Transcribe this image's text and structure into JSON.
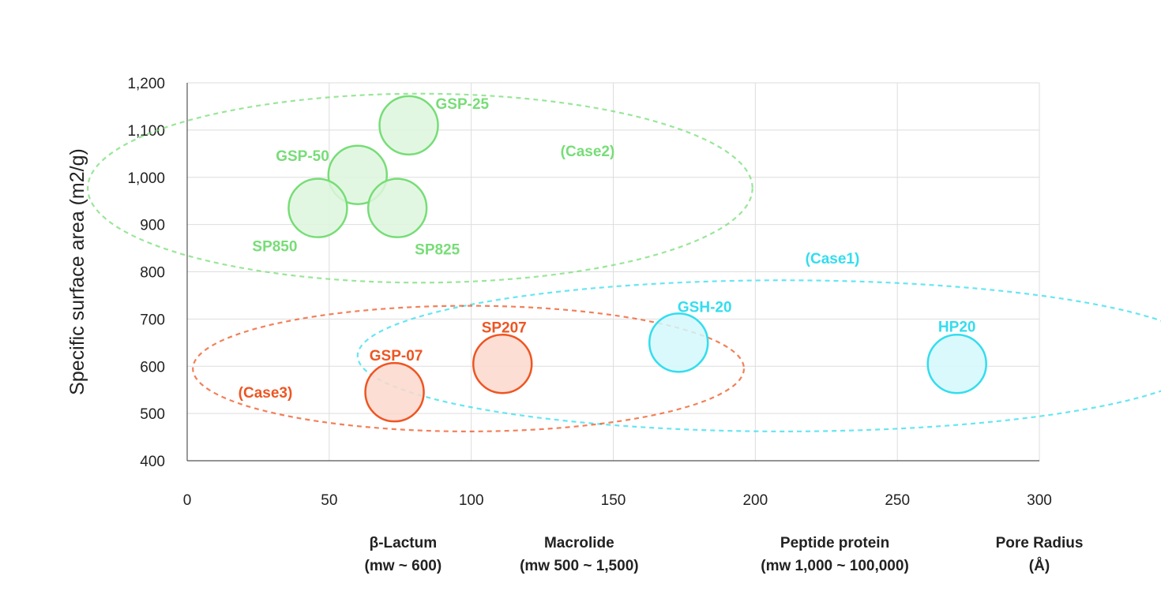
{
  "chart_data": {
    "type": "scatter",
    "ylabel": "Specific surface area (m2/g)",
    "xlim": [
      0,
      300
    ],
    "ylim": [
      400,
      1200
    ],
    "xticks": [
      0,
      50,
      100,
      150,
      200,
      250,
      300
    ],
    "yticks": [
      400,
      500,
      600,
      700,
      800,
      900,
      1000,
      1100,
      1200
    ],
    "y_tick_labels": [
      "400",
      "500",
      "600",
      "700",
      "800",
      "900",
      "1,000",
      "1,100",
      "1,200"
    ],
    "grid": true,
    "x_categories": [
      {
        "line1": "β-Lactum",
        "line2": "(mw ~ 600)",
        "x": 76
      },
      {
        "line1": "Macrolide",
        "line2": "(mw 500 ~ 1,500)",
        "x": 138
      },
      {
        "line1": "Peptide protein",
        "line2": "(mw 1,000 ~ 100,000)",
        "x": 228
      },
      {
        "line1": "Pore Radius",
        "line2": "(Å)",
        "x": 300
      }
    ],
    "points": [
      {
        "label": "GSP-25",
        "x": 78,
        "y": 1110,
        "group": "Case2"
      },
      {
        "label": "GSP-50",
        "x": 60,
        "y": 1005,
        "group": "Case2"
      },
      {
        "label": "SP850",
        "x": 46,
        "y": 935,
        "group": "Case2"
      },
      {
        "label": "SP825",
        "x": 74,
        "y": 935,
        "group": "Case2"
      },
      {
        "label": "GSP-07",
        "x": 73,
        "y": 545,
        "group": "Case3"
      },
      {
        "label": "SP207",
        "x": 111,
        "y": 605,
        "group": "Case3"
      },
      {
        "label": "GSH-20",
        "x": 173,
        "y": 650,
        "group": "Case1"
      },
      {
        "label": "HP20",
        "x": 271,
        "y": 605,
        "group": "Case1"
      }
    ],
    "groups": [
      {
        "name": "Case1",
        "label": "(Case1)",
        "color": "#33DDEE",
        "fill": "#D4F8FC"
      },
      {
        "name": "Case2",
        "label": "(Case2)",
        "color": "#77DD77",
        "fill": "#DDF6DD"
      },
      {
        "name": "Case3",
        "label": "(Case3)",
        "color": "#EE5522",
        "fill": "#FDD8CC"
      }
    ]
  }
}
